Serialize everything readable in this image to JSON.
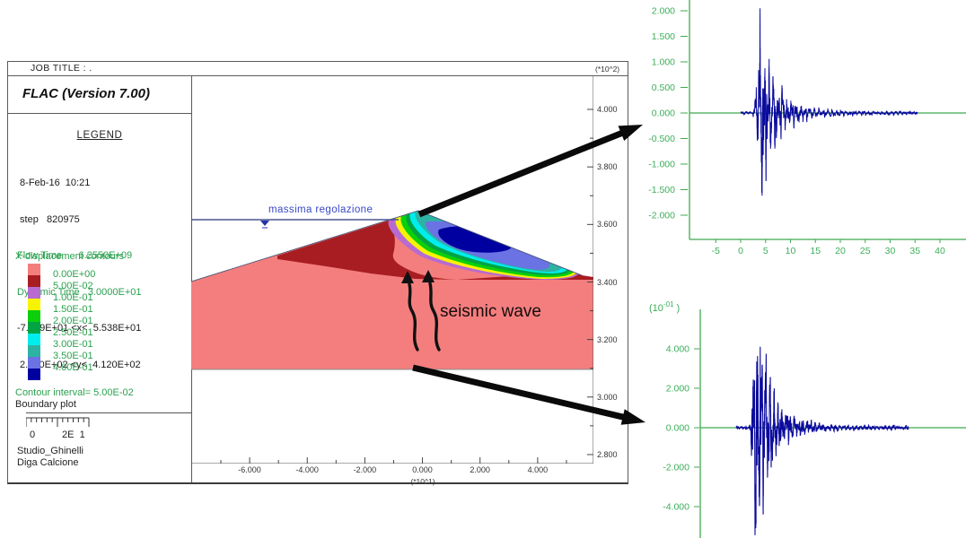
{
  "window": {
    "job_title": "JOB TITLE : .",
    "version": "FLAC (Version 7.00)",
    "legend": {
      "title": "LEGEND",
      "datetime": " 8-Feb-16  10:21",
      "step": " step   820975",
      "flow_time": "Flow Time      6.2550E+09",
      "dynamic_time": "Dynamic Time   3.0000E+01",
      "x_range": "-7.869E+01 <x<  5.538E+01",
      "y_range": " 2.780E+02 <y<  4.120E+02",
      "contours_title": "X-displacement contours",
      "levels": [
        {
          "label": "0.00E+00",
          "value": 0.0,
          "color": "#F47E7E"
        },
        {
          "label": "5.00E-02",
          "value": 0.05,
          "color": "#A81D22"
        },
        {
          "label": "1.00E-01",
          "value": 0.1,
          "color": "#B76BD0"
        },
        {
          "label": "1.50E-01",
          "value": 0.15,
          "color": "#F8F400"
        },
        {
          "label": "2.00E-01",
          "value": 0.2,
          "color": "#0BD00B"
        },
        {
          "label": "2.50E-01",
          "value": 0.25,
          "color": "#00A443"
        },
        {
          "label": "3.00E-01",
          "value": 0.3,
          "color": "#00EDED"
        },
        {
          "label": "3.50E-01",
          "value": 0.35,
          "color": "#2DB3A4"
        },
        {
          "label": "4.00E-01",
          "value": 0.4,
          "color": "#6A72E4"
        },
        {
          "label": "",
          "value": 0.45,
          "color": "#0000A0"
        }
      ],
      "contour_interval": "Contour interval=  5.00E-02",
      "boundary_plot": "Boundary plot",
      "scale_zero": "0",
      "scale_value": "2E  1",
      "author": "Studio_Ghinelli",
      "project": "Diga Calcione"
    },
    "plot": {
      "y_unit": "(*10^2)",
      "x_unit": "(*10^1)",
      "y_ticks": [
        "4.000",
        "3.800",
        "3.600",
        "3.400",
        "3.200",
        "3.000",
        "2.800"
      ],
      "x_ticks": [
        "-6.000",
        "-4.000",
        "-2.000",
        "0.000",
        "2.000",
        "4.000"
      ],
      "water_label": "massima regolazione",
      "annotation": "seismic wave"
    }
  },
  "colors": {
    "text_green": "#2aa14e",
    "seismo_axis_green": "#3fa94f",
    "seismo_label_green": "#3cae5a",
    "waveform_blue": "#0b0b9d",
    "water_blue": "#3848c8",
    "water_line": "#4a5590",
    "arrow_black": "#0a0a0a",
    "tick_text": "#333333",
    "border_gray": "#5a5a5a"
  },
  "chart_data": [
    {
      "id": "dam_cross_section",
      "type": "heatmap",
      "title": "X-displacement contours",
      "contour_interval": 0.05,
      "levels": [
        0.0,
        0.05,
        0.1,
        0.15,
        0.2,
        0.25,
        0.3,
        0.35,
        0.4
      ],
      "x_axis": {
        "unit": "(*10^1)",
        "tick_labels": [
          "-6.000",
          "-4.000",
          "-2.000",
          "0.000",
          "2.000",
          "4.000"
        ],
        "model_range": [
          -78.69,
          55.38
        ]
      },
      "y_axis": {
        "unit": "(*10^2)",
        "tick_labels": [
          "4.000",
          "3.800",
          "3.600",
          "3.400",
          "3.200",
          "3.000",
          "2.800"
        ],
        "model_range": [
          278.0,
          412.0
        ]
      },
      "annotations": [
        "massima regolazione",
        "seismic wave"
      ],
      "legend_position": "left"
    },
    {
      "id": "seismogram_crest",
      "type": "line",
      "x": {
        "tick_labels": [
          "-5",
          "0",
          "5",
          "10",
          "15",
          "20",
          "25",
          "30",
          "35",
          "40"
        ],
        "t_start": 0,
        "t_end": 35.5
      },
      "y": {
        "tick_labels": [
          "2.000",
          "1.500",
          "1.000",
          "0.500",
          "0.000",
          "-0.500",
          "-1.000",
          "-1.500",
          "-2.000"
        ],
        "tick_values": [
          2,
          1.5,
          1,
          0.5,
          0,
          -0.5,
          -1,
          -1.5,
          -2
        ]
      },
      "signal": {
        "seed": 7,
        "rise_start": 2.2,
        "peak_time": 3.8,
        "peak_positive": 2.05,
        "peak_negative": -1.62,
        "decay_fast": 2.6,
        "decay_slow": 9.0,
        "baseline": 0
      }
    },
    {
      "id": "seismogram_base",
      "type": "line",
      "unit_label": {
        "base": "(10",
        "sup": "-01",
        "close": " )"
      },
      "x": {
        "t_start": 0,
        "t_end": 38
      },
      "y": {
        "tick_labels": [
          "4.000",
          "2.000",
          "0.000",
          "-2.000",
          "-4.000"
        ],
        "tick_values": [
          4,
          2,
          0,
          -2,
          -4
        ]
      },
      "signal": {
        "seed": 23,
        "rise_start": 2.6,
        "peak_time": 4.3,
        "peak_positive": 4.1,
        "peak_negative": -5.45,
        "decay_fast": 2.8,
        "decay_slow": 8.0,
        "baseline": 0
      }
    }
  ]
}
